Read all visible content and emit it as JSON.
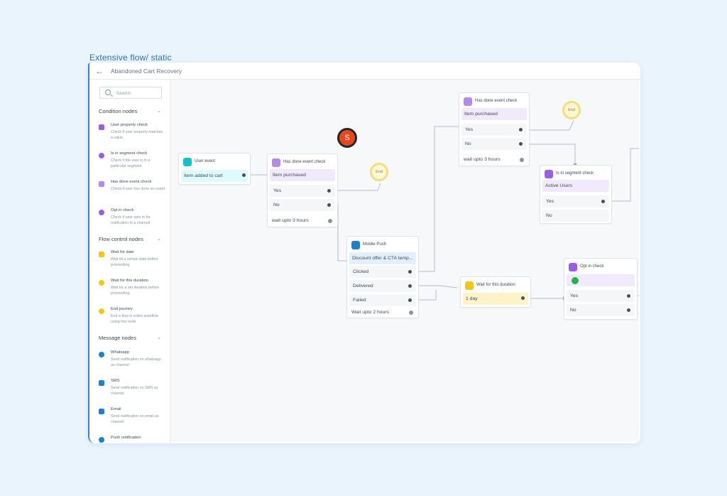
{
  "frame_title": "Extensive flow/ static",
  "app": {
    "title": "Abandoned Cart Recovery"
  },
  "sidebar": {
    "search_placeholder": "Search",
    "sections": [
      {
        "label": "Condition nodes",
        "items": [
          {
            "icon": "user-property-icon",
            "title": "User property check",
            "desc": "Check if user property matches a value"
          },
          {
            "icon": "segment-icon",
            "title": "Is in segment check",
            "desc": "Check if the user is in a particular segment"
          },
          {
            "icon": "event-check-icon",
            "title": "Has done event check",
            "desc": "Check if user has done an event"
          },
          {
            "icon": "opt-in-icon",
            "title": "Opt in check",
            "desc": "Check if user opts in for notification in a channel"
          }
        ]
      },
      {
        "label": "Flow control nodes",
        "items": [
          {
            "icon": "calendar-icon",
            "title": "Wait for date",
            "desc": "Wait till a certain date before proceeding"
          },
          {
            "icon": "clock-icon",
            "title": "Wait for this duration",
            "desc": "Wait for a set duration before proceeding"
          },
          {
            "icon": "end-journey-icon",
            "title": "End journey",
            "desc": "End a flow in entire workflow using this node"
          }
        ]
      },
      {
        "label": "Message nodes",
        "items": [
          {
            "icon": "whatsapp-icon",
            "title": "Whatsapp",
            "desc": "Send notification on whatsapp as channel"
          },
          {
            "icon": "sms-icon",
            "title": "SMS",
            "desc": "Send notification on SMS as channel"
          },
          {
            "icon": "email-icon",
            "title": "Email",
            "desc": "Send notification on email as channel"
          },
          {
            "icon": "push-icon",
            "title": "Push notification",
            "desc": ""
          }
        ]
      }
    ]
  },
  "canvas": {
    "user_event": {
      "title": "User event",
      "value": "Item added to cart"
    },
    "event_check_1": {
      "title": "Has done event check",
      "value": "Item purchased",
      "yes": "Yes",
      "no": "No",
      "wait": "wait upto 3 hours"
    },
    "end_1": "End",
    "avatar_letter": "S",
    "mobile_push": {
      "title": "Mobile Push",
      "value": "Discount offer & CTA temp...",
      "clicked": "Clicked",
      "delivered": "Delivered",
      "failed": "Failed",
      "wait": "Wait upto 2 hours"
    },
    "event_check_2": {
      "title": "Has done event check",
      "value": "Item purchased",
      "yes": "Yes",
      "no": "No",
      "wait": "wait upto 3 hours"
    },
    "end_2": "End",
    "segment_check": {
      "title": "Is in segment check",
      "value": "Active Users",
      "yes": "Yes",
      "no": "No"
    },
    "wait_duration": {
      "title": "Wait for this duration",
      "value": "1 day"
    },
    "opt_in_check": {
      "title": "Opt in check",
      "yes": "Yes",
      "no": "No"
    }
  },
  "colors": {
    "accent": "#2f86d6",
    "condition": "#9b5de5",
    "flow": "#f5c518",
    "message": "#1e7fd1",
    "event": "#18c0c9",
    "end_ring": "#f4dd7a"
  }
}
